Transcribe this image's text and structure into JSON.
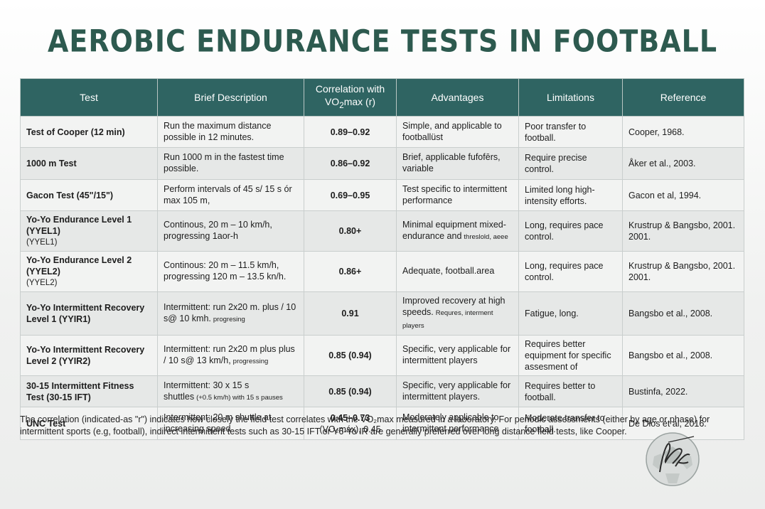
{
  "title": "AEROBIC ENDURANCE TESTS IN FOOTBALL",
  "headers": {
    "test": "Test",
    "description": "Brief Description",
    "correlation_line1": "Correlation with",
    "correlation_vo": "VO",
    "correlation_sub": "2",
    "correlation_rest": "max (r)",
    "advantages": "Advantages",
    "limitations": "Limitations",
    "reference": "Reference"
  },
  "rows": [
    {
      "test": "Test of Cooper (12 min)",
      "test_sub": "",
      "description": "Run the maximum distance possible in 12 minutes.",
      "description_small": "",
      "correlation": "0.89–0.92",
      "correlation_sub": "",
      "advantages": "Simple, and applicable to footballüst",
      "advantages_small": "",
      "limitations": "Poor transfer to football.",
      "reference": "Cooper, 1968."
    },
    {
      "test": "1000 m Test",
      "test_sub": "",
      "description": "Run 1000 m in the fastest time possible.",
      "description_small": "",
      "correlation": "0.86–0.92",
      "correlation_sub": "",
      "advantages": "Brief, applicable fufofērs, variable",
      "advantages_small": "",
      "limitations": "Require precise control.",
      "reference": "Åker et al., 2003."
    },
    {
      "test": "Gacon Test (45\"/15\")",
      "test_sub": "",
      "description": "Perform intervals of 45 s/ 15 s ór max 105 m,",
      "description_small": "",
      "correlation": "0.69–0.95",
      "correlation_sub": "",
      "advantages": "Test specific to intermittent performance",
      "advantages_small": "",
      "limitations": "Limited long high-intensity efforts.",
      "reference": "Gacon et al, 1994."
    },
    {
      "test": "Yo-Yo Endurance Level 1 (YYEL1)",
      "test_sub": "(YYEL1)",
      "description": "Continous, 20 m – 10 km/h, progressing 1aor-h",
      "description_small": "",
      "correlation": "0.80+",
      "correlation_sub": "",
      "advantages": "Minimal equipment mixed-endurance and",
      "advantages_small": "threslold, aeee",
      "limitations": "Long, requires pace control.",
      "reference": "Krustrup & Bangsbo, 2001. 2001."
    },
    {
      "test": "Yo-Yo Endurance Level 2 (YYEL2)",
      "test_sub": "(YYEL2)",
      "description": "Continous: 20 m – 11.5 km/h, progressing 120 m – 13.5 kn/h.",
      "description_small": "",
      "correlation": "0.86+",
      "correlation_sub": "",
      "advantages": "Adequate, football.area",
      "advantages_small": "",
      "limitations": "Long, requires pace control.",
      "reference": "Krustrup & Bangsbo, 2001. 2001."
    },
    {
      "test": "Yo-Yo Intermittent Recovery Level 1 (YYIR1)",
      "test_sub": "",
      "description": "Intermittent: run 2x20 m. plus / 10 s@ 10 kmh.",
      "description_small": "progresing",
      "correlation": "0.91",
      "correlation_sub": "",
      "advantages": "Improved recovery at high speeds.",
      "advantages_small": "Requres, interment players",
      "limitations": "Fatigue, long.",
      "reference": "Bangsbo et al., 2008."
    },
    {
      "test": "Yo-Yo Intermittent Recovery Level 2 (YYIR2)",
      "test_sub": "",
      "description": "Intermittent: run 2x20 m plus plus / 10 s@ 13 km/h,",
      "description_small": "progressing",
      "correlation": "0.85 (0.94)",
      "correlation_sub": "",
      "advantages": "Specific, very applicable for intermittent players",
      "advantages_small": "",
      "limitations": "Requires better equipment for specific assesment of",
      "reference": "Bangsbo et al., 2008."
    },
    {
      "test": "30-15 Intermittent Fitness Test (30-15 IFT)",
      "test_sub": "",
      "description": "Intermittent: 30 x 15 s shuttles",
      "description_small": "(+0.5 km/h) with 15 s pauses",
      "correlation": "0.85 (0.94)",
      "correlation_sub": "",
      "advantages": "Specific, very applicable for intermittent players.",
      "advantages_small": "",
      "limitations": "Requires better to football.",
      "reference": "Bustinfa, 2022."
    },
    {
      "test": "UNC Test",
      "test_sub": "",
      "description": "Intermittent: 20 m shuttle at increasing speed",
      "description_small": "",
      "correlation": "0.45–0.73",
      "correlation_sub": "(VO₂máx), 0.45",
      "advantages": "Moderately applicable to intermittent performance",
      "advantages_small": "",
      "limitations": "Moderate transfer to football.",
      "reference": "De Dios et al, 2016."
    }
  ],
  "footnote": "The correlation (indicated-as \"r\") indicates how closely the field test correlates with the VO₂max measured in a laboratory. For periodic assessments (either by age or phase) for intermittent sports (e.g, football), indirect intermittent tests such as 30-15 IFT or Y6-Yo IR are generally preferred over long distance field tests, like Cooper.",
  "colors": {
    "title": "#2d5a4f",
    "header_bg": "#2f6462",
    "row_light": "#f2f3f2",
    "row_dark": "#e6e8e7"
  },
  "seal_icon": "signature-seal-icon"
}
